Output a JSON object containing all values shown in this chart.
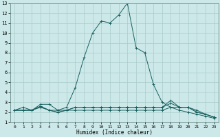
{
  "xlabel": "Humidex (Indice chaleur)",
  "bg_color": "#cce8e8",
  "grid_color": "#aacaca",
  "line_color": "#1a6060",
  "xlim": [
    -0.5,
    23.5
  ],
  "ylim": [
    1,
    13
  ],
  "xticks": [
    0,
    1,
    2,
    3,
    4,
    5,
    6,
    7,
    8,
    9,
    10,
    11,
    12,
    13,
    14,
    15,
    16,
    17,
    18,
    19,
    20,
    21,
    22,
    23
  ],
  "yticks": [
    1,
    2,
    3,
    4,
    5,
    6,
    7,
    8,
    9,
    10,
    11,
    12,
    13
  ],
  "series": [
    [
      2.2,
      2.5,
      2.2,
      2.8,
      2.8,
      2.2,
      2.5,
      4.5,
      7.5,
      10.0,
      11.2,
      11.0,
      11.8,
      13.0,
      8.5,
      8.0,
      4.8,
      3.0,
      2.5,
      2.5,
      2.5,
      2.0,
      1.8,
      1.5
    ],
    [
      2.2,
      2.2,
      2.2,
      2.6,
      2.2,
      2.0,
      2.2,
      2.5,
      2.5,
      2.5,
      2.5,
      2.5,
      2.5,
      2.5,
      2.5,
      2.5,
      2.5,
      2.5,
      3.2,
      2.5,
      2.5,
      2.0,
      1.8,
      1.5
    ],
    [
      2.2,
      2.2,
      2.2,
      2.6,
      2.2,
      2.2,
      2.2,
      2.5,
      2.5,
      2.5,
      2.5,
      2.5,
      2.5,
      2.5,
      2.5,
      2.5,
      2.5,
      2.5,
      2.9,
      2.5,
      2.5,
      2.2,
      1.8,
      1.5
    ],
    [
      2.2,
      2.2,
      2.2,
      2.5,
      2.2,
      2.0,
      2.2,
      2.2,
      2.2,
      2.2,
      2.2,
      2.2,
      2.2,
      2.2,
      2.2,
      2.2,
      2.2,
      2.2,
      2.5,
      2.2,
      2.0,
      1.8,
      1.6,
      1.4
    ]
  ]
}
